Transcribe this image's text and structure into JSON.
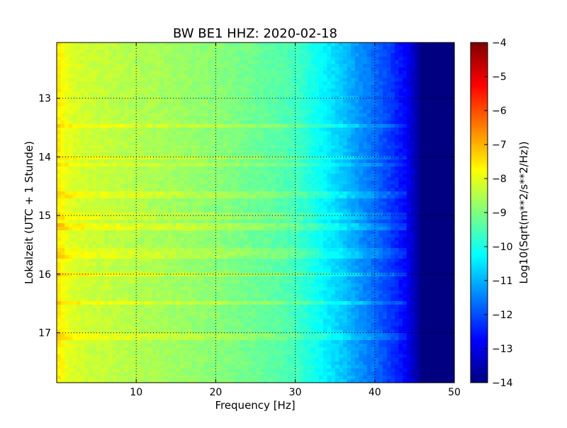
{
  "chart_data": {
    "type": "heatmap",
    "title": "BW BE1 HHZ: 2020-02-18",
    "xlabel": "Frequency [Hz]",
    "ylabel": "Lokalzeit (UTC + 1 Stunde)",
    "xlim": [
      0,
      50
    ],
    "ylim": [
      12.05,
      17.85
    ],
    "y_inverted": true,
    "x_ticks": [
      10,
      20,
      30,
      40,
      50
    ],
    "y_ticks": [
      13,
      14,
      15,
      16,
      17
    ],
    "grid": true,
    "colormap": "jet",
    "colorbar": {
      "label": "Log10(Sqrt(m**2/s**2/Hz))",
      "min": -14,
      "max": -4,
      "ticks": [
        -4,
        -5,
        -6,
        -7,
        -8,
        -9,
        -10,
        -11,
        -12,
        -13,
        -14
      ]
    },
    "spectral_profile": {
      "frequency_hz": [
        0.5,
        1,
        2,
        5,
        10,
        15,
        20,
        25,
        28,
        30,
        32,
        34,
        36,
        38,
        40,
        42,
        44,
        46,
        50
      ],
      "value_log10": [
        -7.6,
        -7.9,
        -8.1,
        -8.3,
        -8.5,
        -8.7,
        -8.9,
        -9.2,
        -9.4,
        -9.6,
        -10.0,
        -10.4,
        -10.8,
        -11.3,
        -11.7,
        -12.2,
        -12.8,
        -14.0,
        -14.0
      ]
    },
    "noisy_time_bands_hours": [
      {
        "time": 13.48,
        "offset_log10": 0.55
      },
      {
        "time": 14.0,
        "offset_log10": 0.45
      },
      {
        "time": 14.12,
        "offset_log10": 0.4
      },
      {
        "time": 14.65,
        "offset_log10": 0.45
      },
      {
        "time": 15.0,
        "offset_log10": 0.35
      },
      {
        "time": 15.2,
        "offset_log10": 0.55
      },
      {
        "time": 15.58,
        "offset_log10": 0.35
      },
      {
        "time": 15.68,
        "offset_log10": 0.45
      },
      {
        "time": 16.0,
        "offset_log10": 0.6
      },
      {
        "time": 16.5,
        "offset_log10": 0.6
      },
      {
        "time": 17.07,
        "offset_log10": 0.45
      }
    ]
  }
}
